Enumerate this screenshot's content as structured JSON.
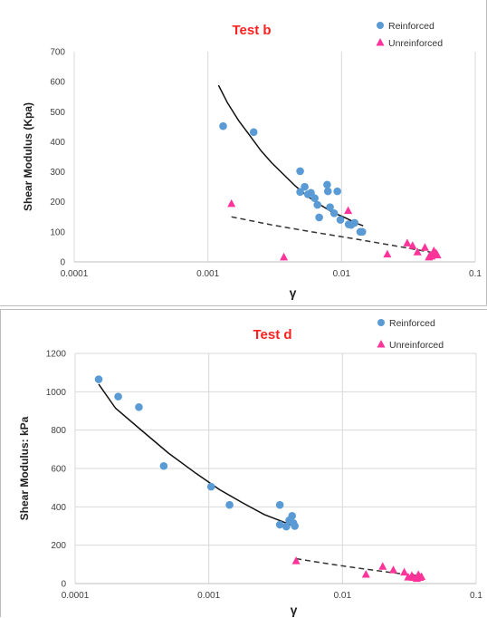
{
  "chart_data": [
    {
      "type": "scatter",
      "title": "Test b",
      "xlabel": "γ",
      "ylabel": "Shear Modulus (Kpa)",
      "xscale": "log",
      "xlim": [
        0.0001,
        0.1
      ],
      "ylim": [
        0,
        700
      ],
      "xticks": [
        "0.0001",
        "0.001",
        "0.01",
        "0.1"
      ],
      "yticks": [
        "0",
        "100",
        "200",
        "300",
        "400",
        "500",
        "600",
        "700"
      ],
      "grid": "vertical",
      "legend_position": "top-right",
      "series": [
        {
          "name": "Reinforced",
          "color": "#5b9bd5",
          "marker": "circle",
          "x": [
            0.0013,
            0.0022,
            0.0049,
            0.0049,
            0.0053,
            0.0056,
            0.0059,
            0.0063,
            0.0066,
            0.0068,
            0.0078,
            0.0079,
            0.0082,
            0.0088,
            0.0093,
            0.0098,
            0.0113,
            0.0118,
            0.0125,
            0.0138,
            0.0143
          ],
          "y": [
            452,
            432,
            302,
            233,
            250,
            225,
            230,
            212,
            190,
            148,
            257,
            235,
            182,
            162,
            235,
            140,
            125,
            123,
            130,
            100,
            100
          ]
        },
        {
          "name": "Unreinforced",
          "color": "#ff3399",
          "marker": "triangle",
          "x": [
            0.0015,
            0.0037,
            0.0112,
            0.022,
            0.031,
            0.034,
            0.037,
            0.042,
            0.045,
            0.046,
            0.047,
            0.048,
            0.049,
            0.05,
            0.051,
            0.052
          ],
          "y": [
            193,
            15,
            170,
            25,
            62,
            53,
            32,
            47,
            15,
            20,
            18,
            22,
            36,
            25,
            28,
            22
          ]
        }
      ],
      "trendlines": [
        {
          "series": "Reinforced",
          "style": "solid",
          "x": [
            0.0012,
            0.0014,
            0.0017,
            0.002,
            0.0025,
            0.003,
            0.0037,
            0.0045,
            0.0055,
            0.0068,
            0.0085,
            0.0105,
            0.013,
            0.0145
          ],
          "y": [
            588,
            530,
            470,
            428,
            370,
            330,
            290,
            253,
            220,
            192,
            166,
            148,
            128,
            120
          ]
        },
        {
          "series": "Unreinforced",
          "style": "dashed",
          "x": [
            0.0015,
            0.003,
            0.006,
            0.012,
            0.024,
            0.05
          ],
          "y": [
            150,
            123,
            100,
            78,
            55,
            30
          ]
        }
      ]
    },
    {
      "type": "scatter",
      "title": "Test d",
      "xlabel": "γ",
      "ylabel": "Shear Modulus: kPa",
      "xscale": "log",
      "xlim": [
        0.0001,
        0.1
      ],
      "ylim": [
        0,
        1200
      ],
      "xticks": [
        "0.0001",
        "0.001",
        "0.01",
        "0.1"
      ],
      "yticks": [
        "0",
        "200",
        "400",
        "600",
        "800",
        "1000",
        "1200"
      ],
      "grid": "both",
      "legend_position": "top-right",
      "series": [
        {
          "name": "Reinforced",
          "color": "#5b9bd5",
          "marker": "circle",
          "x": [
            0.00015,
            0.00021,
            0.0003,
            0.00046,
            0.00104,
            0.00143,
            0.0034,
            0.0034,
            0.0038,
            0.004,
            0.0042,
            0.0043,
            0.0044
          ],
          "y": [
            1065,
            975,
            920,
            613,
            505,
            410,
            410,
            307,
            297,
            330,
            353,
            315,
            300
          ]
        },
        {
          "name": "Unreinforced",
          "color": "#ff3399",
          "marker": "triangle",
          "x": [
            0.0045,
            0.015,
            0.02,
            0.024,
            0.029,
            0.031,
            0.033,
            0.034,
            0.036,
            0.037,
            0.038,
            0.039
          ],
          "y": [
            117,
            47,
            88,
            70,
            58,
            32,
            40,
            30,
            25,
            45,
            30,
            35
          ]
        }
      ],
      "trendlines": [
        {
          "series": "Reinforced",
          "style": "solid",
          "x": [
            0.00015,
            0.0002,
            0.0003,
            0.0005,
            0.0008,
            0.0012,
            0.0018,
            0.0026,
            0.0035,
            0.0043
          ],
          "y": [
            1040,
            915,
            810,
            680,
            575,
            490,
            420,
            360,
            325,
            300
          ]
        },
        {
          "series": "Unreinforced",
          "style": "dashed",
          "x": [
            0.0045,
            0.007,
            0.011,
            0.017,
            0.025,
            0.033,
            0.04
          ],
          "y": [
            130,
            108,
            88,
            70,
            55,
            44,
            38
          ]
        }
      ]
    }
  ]
}
